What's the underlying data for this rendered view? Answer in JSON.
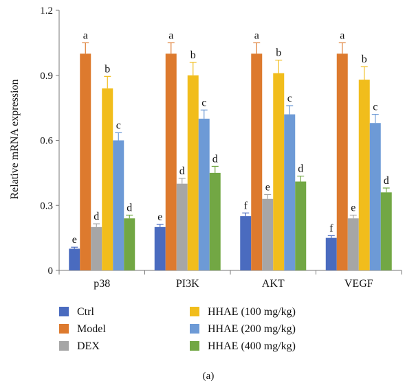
{
  "chart_data": {
    "type": "bar",
    "ylabel": "Relative mRNA expression",
    "ylim": [
      0,
      1.2
    ],
    "yticks": [
      "0",
      "0.3",
      "0.6",
      "0.9",
      "1.2"
    ],
    "ytick_values": [
      0,
      0.3,
      0.6,
      0.9,
      1.2
    ],
    "categories": [
      "p38",
      "PI3K",
      "AKT",
      "VEGF"
    ],
    "series": [
      {
        "name": "Ctrl",
        "color": "#4a6bbf",
        "values": [
          0.1,
          0.2,
          0.25,
          0.15
        ],
        "errors": [
          0.007,
          0.012,
          0.015,
          0.01
        ],
        "letters": [
          "e",
          "e",
          "f",
          "f"
        ]
      },
      {
        "name": "Model",
        "color": "#dd7a2e",
        "values": [
          1.0,
          1.0,
          1.0,
          1.0
        ],
        "errors": [
          0.05,
          0.05,
          0.05,
          0.05
        ],
        "letters": [
          "a",
          "a",
          "a",
          "a"
        ]
      },
      {
        "name": "DEX",
        "color": "#a6a6a6",
        "values": [
          0.2,
          0.4,
          0.33,
          0.24
        ],
        "errors": [
          0.015,
          0.025,
          0.02,
          0.015
        ],
        "letters": [
          "d",
          "d",
          "e",
          "e"
        ]
      },
      {
        "name": "HHAE (100 mg/kg)",
        "color": "#f1bd1c",
        "values": [
          0.84,
          0.9,
          0.91,
          0.88
        ],
        "errors": [
          0.055,
          0.06,
          0.06,
          0.06
        ],
        "letters": [
          "b",
          "b",
          "b",
          "b"
        ]
      },
      {
        "name": "HHAE (200 mg/kg)",
        "color": "#6d9ad6",
        "values": [
          0.6,
          0.7,
          0.72,
          0.68
        ],
        "errors": [
          0.035,
          0.04,
          0.04,
          0.04
        ],
        "letters": [
          "c",
          "c",
          "c",
          "c"
        ]
      },
      {
        "name": "HHAE (400 mg/kg)",
        "color": "#72a744",
        "values": [
          0.24,
          0.45,
          0.41,
          0.36
        ],
        "errors": [
          0.015,
          0.03,
          0.025,
          0.02
        ],
        "letters": [
          "d",
          "d",
          "d",
          "d"
        ]
      }
    ],
    "grid": false,
    "legend_position": "bottom"
  },
  "caption": "(a)"
}
